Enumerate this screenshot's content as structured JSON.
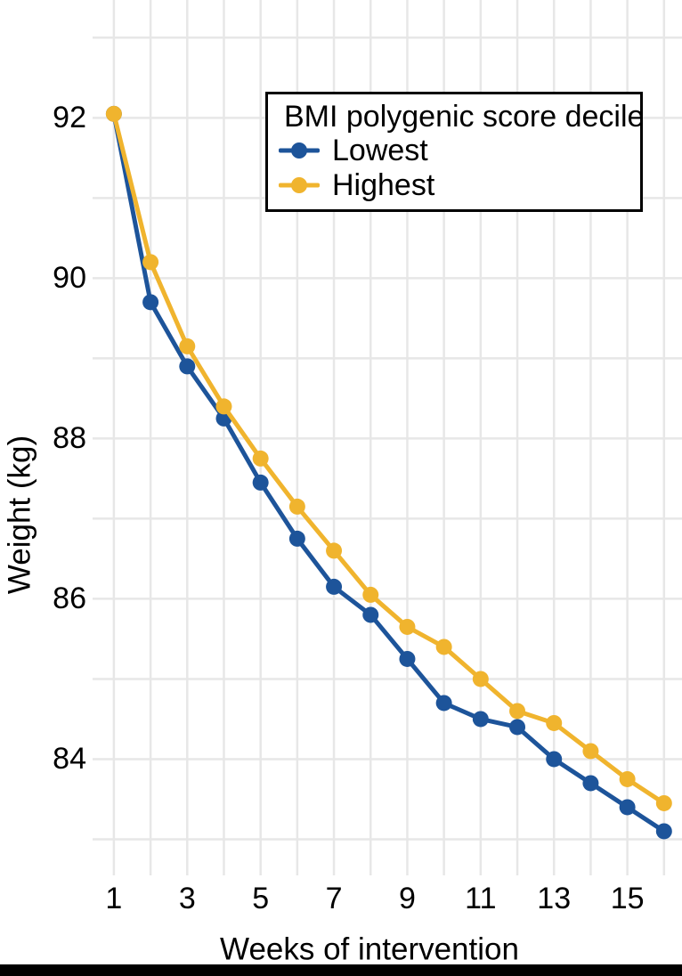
{
  "figure": {
    "kind": "line chart",
    "background": "#ffffff"
  },
  "legend": {
    "title": "BMI polygenic score decile",
    "items": [
      {
        "label": "Lowest",
        "color": "#1d549a"
      },
      {
        "label": "Highest",
        "color": "#f0b42e"
      }
    ]
  },
  "chart_data": {
    "type": "line",
    "title": "",
    "xlabel": "Weeks of intervention",
    "ylabel": "Weight (kg)",
    "x": [
      1,
      2,
      3,
      4,
      5,
      6,
      7,
      8,
      9,
      10,
      11,
      12,
      13,
      14,
      15,
      16
    ],
    "series": [
      {
        "name": "Lowest",
        "color": "#1d549a",
        "values": [
          92.05,
          89.7,
          88.9,
          88.25,
          87.45,
          86.75,
          86.15,
          85.8,
          85.25,
          84.7,
          84.5,
          84.4,
          84.0,
          83.7,
          83.4,
          83.1
        ]
      },
      {
        "name": "Highest",
        "color": "#f0b42e",
        "values": [
          92.05,
          90.2,
          89.15,
          88.4,
          87.75,
          87.15,
          86.6,
          86.05,
          85.65,
          85.4,
          85.0,
          84.6,
          84.45,
          84.1,
          83.75,
          83.45
        ]
      }
    ],
    "xticks": [
      1,
      3,
      5,
      7,
      9,
      11,
      13,
      15
    ],
    "yticks": [
      84,
      86,
      88,
      90,
      92
    ],
    "grid_x": [
      1,
      2,
      3,
      4,
      5,
      6,
      7,
      8,
      9,
      10,
      11,
      12,
      13,
      14,
      15,
      16
    ],
    "grid_y": [
      83,
      84,
      85,
      86,
      87,
      88,
      89,
      90,
      91,
      92,
      93
    ],
    "xlim": [
      0.42,
      16.49
    ],
    "ylim": [
      82.55,
      93.47
    ],
    "grid": "on",
    "grid_color": "#e7e7e7",
    "axis_lines": "none",
    "legend_position": "top-center-inside",
    "marker": "circle",
    "text_color": "#000000"
  }
}
